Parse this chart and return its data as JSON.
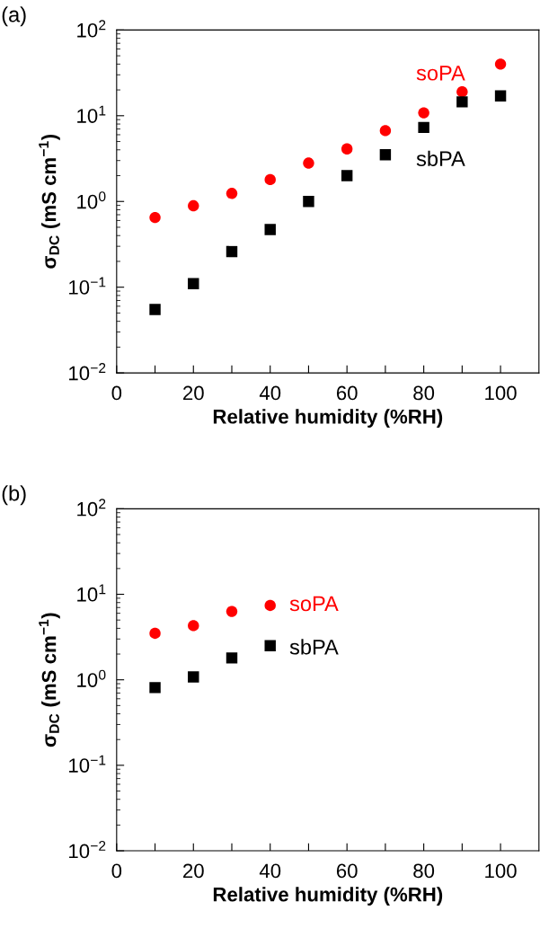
{
  "chart_data": [
    {
      "type": "scatter",
      "title": "(a)",
      "xlabel": "Relative humidity (%RH)",
      "ylabel": "σ$_{DC}$ (mS cm$^{−1}$)",
      "log": "y",
      "grid": false,
      "legend": false,
      "xlim": [
        0,
        110
      ],
      "xticks": [
        0,
        {
          "value": 10,
          "label": null
        },
        20,
        {
          "value": 30,
          "label": null
        },
        40,
        {
          "value": 50,
          "label": null
        },
        60,
        {
          "value": 70,
          "label": null
        },
        80,
        {
          "value": 90,
          "label": null
        },
        100
      ],
      "ylim": [
        0.01,
        100
      ],
      "yticks": [
        {
          "value": 0.01,
          "label": "10$^{−2}$"
        },
        {
          "value": 0.1,
          "label": "10$^{−1}$"
        },
        {
          "value": 1,
          "label": "10$^{0}$"
        },
        {
          "value": 10,
          "label": "10$^{1}$"
        },
        {
          "value": 100,
          "label": "10$^{2}$"
        }
      ],
      "series": [
        {
          "name": "soPA",
          "color": "#ff0000",
          "marker": "circle",
          "x": [
            10,
            20,
            30,
            40,
            50,
            60,
            70,
            80,
            90,
            100
          ],
          "values": [
            0.65,
            0.89,
            1.24,
            1.8,
            2.8,
            4.1,
            6.7,
            10.8,
            19,
            40
          ]
        },
        {
          "name": "sbPA",
          "color": "#000000",
          "marker": "square",
          "x": [
            10,
            20,
            30,
            40,
            50,
            60,
            70,
            80,
            90,
            100
          ],
          "values": [
            0.055,
            0.11,
            0.26,
            0.47,
            1.0,
            2.0,
            3.5,
            7.3,
            14.5,
            17
          ]
        }
      ]
    },
    {
      "type": "scatter",
      "title": "(b)",
      "xlabel": "Relative humidity (%RH)",
      "ylabel": "σ$_{DC}$ (mS cm$^{−1}$)",
      "log": "y",
      "grid": false,
      "legend": false,
      "xlim": [
        0,
        110
      ],
      "xticks": [
        0,
        {
          "value": 10,
          "label": null
        },
        20,
        {
          "value": 30,
          "label": null
        },
        40,
        {
          "value": 50,
          "label": null
        },
        60,
        {
          "value": 70,
          "label": null
        },
        80,
        {
          "value": 90,
          "label": null
        },
        100
      ],
      "ylim": [
        0.01,
        100
      ],
      "yticks": [
        {
          "value": 0.01,
          "label": "10$^{−2}$"
        },
        {
          "value": 0.1,
          "label": "10$^{−1}$"
        },
        {
          "value": 1,
          "label": "10$^{0}$"
        },
        {
          "value": 10,
          "label": "10$^{1}$"
        },
        {
          "value": 100,
          "label": "10$^{2}$"
        }
      ],
      "series": [
        {
          "name": "soPA",
          "color": "#ff0000",
          "marker": "circle",
          "x": [
            10,
            20,
            30,
            40
          ],
          "values": [
            3.5,
            4.3,
            6.3,
            7.4
          ]
        },
        {
          "name": "sbPA",
          "color": "#000000",
          "marker": "square",
          "x": [
            10,
            20,
            30,
            40
          ],
          "values": [
            0.81,
            1.08,
            1.8,
            2.5
          ]
        }
      ]
    }
  ]
}
